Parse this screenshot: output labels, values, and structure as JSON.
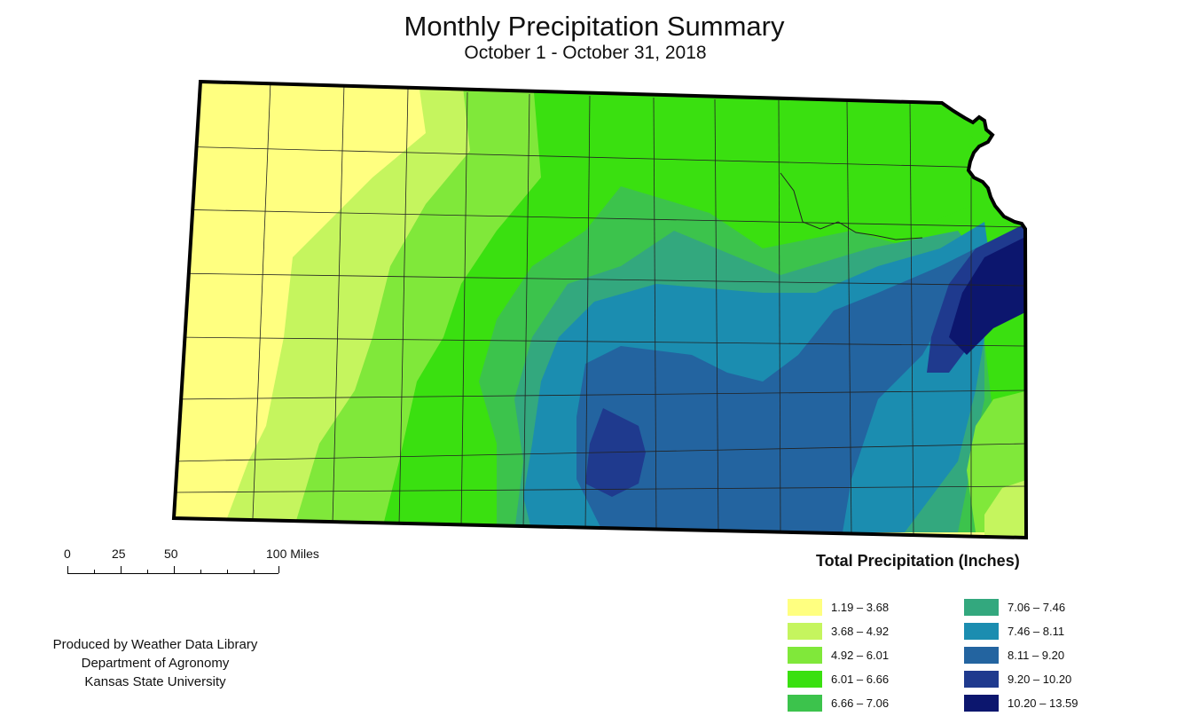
{
  "title": "Monthly Precipitation Summary",
  "subtitle": "October 1 - October 31, 2018",
  "scale": {
    "labels": [
      "0",
      "25",
      "50",
      "100 Miles"
    ]
  },
  "credits": {
    "line1": "Produced by Weather Data Library",
    "line2": "Department of Agronomy",
    "line3": "Kansas State University"
  },
  "legend": {
    "title": "Total Precipitation (Inches)",
    "items": [
      {
        "label": "1.19 – 3.68",
        "color": "#ffff80"
      },
      {
        "label": "3.68 – 4.92",
        "color": "#c5f55e"
      },
      {
        "label": "4.92 – 6.01",
        "color": "#80e83a"
      },
      {
        "label": "6.01 – 6.66",
        "color": "#3ae010"
      },
      {
        "label": "6.66 – 7.06",
        "color": "#3cc34c"
      },
      {
        "label": "7.06 – 7.46",
        "color": "#33a87e"
      },
      {
        "label": "7.46 – 8.11",
        "color": "#1b8db0"
      },
      {
        "label": "8.11 – 9.20",
        "color": "#2364a0"
      },
      {
        "label": "9.20 – 10.20",
        "color": "#1f3a8e"
      },
      {
        "label": "10.20 – 13.59",
        "color": "#0c166e"
      }
    ]
  }
}
